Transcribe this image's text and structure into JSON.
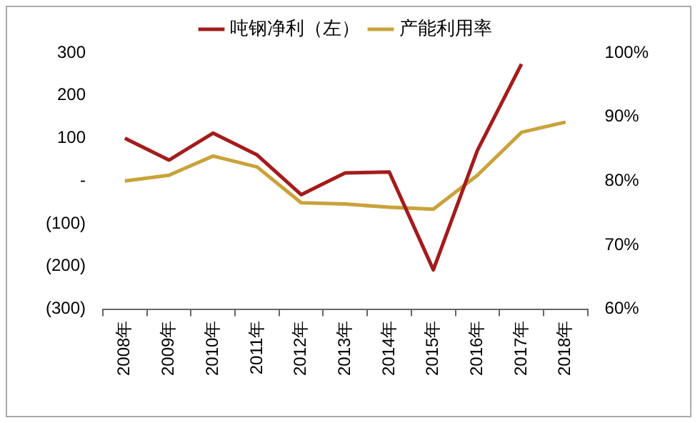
{
  "chart_data": {
    "type": "line",
    "categories": [
      "2008年",
      "2009年",
      "2010年",
      "2011年",
      "2012年",
      "2013年",
      "2014年",
      "2015年",
      "2016年",
      "2017年",
      "2018年"
    ],
    "series": [
      {
        "name": "吨钢净利（左）",
        "color": "#a31c1c",
        "values": [
          100,
          49,
          112,
          61,
          -32,
          19,
          21,
          -208,
          72,
          274,
          null
        ]
      },
      {
        "name": "产能利用率",
        "color": "#c9a23a",
        "axis": "y2",
        "values": [
          80.0,
          80.9,
          83.9,
          82.2,
          76.6,
          76.4,
          75.9,
          75.6,
          80.9,
          87.6,
          89.2
        ]
      }
    ],
    "ylim": [
      -300,
      300
    ],
    "yticks": [
      {
        "value": -300,
        "label": "(300)"
      },
      {
        "value": -200,
        "label": "(200)"
      },
      {
        "value": -100,
        "label": "(100)"
      },
      {
        "value": 0,
        "label": "-"
      },
      100,
      200,
      300
    ],
    "y2lim": [
      60,
      100
    ],
    "y2ticks": [
      {
        "value": 60,
        "label": "60%"
      },
      {
        "value": 70,
        "label": "70%"
      },
      {
        "value": 80,
        "label": "80%"
      },
      {
        "value": 90,
        "label": "90%"
      },
      {
        "value": 100,
        "label": "100%"
      }
    ],
    "grid": false,
    "legend": "top",
    "marker": "none",
    "line_style": "solid"
  }
}
